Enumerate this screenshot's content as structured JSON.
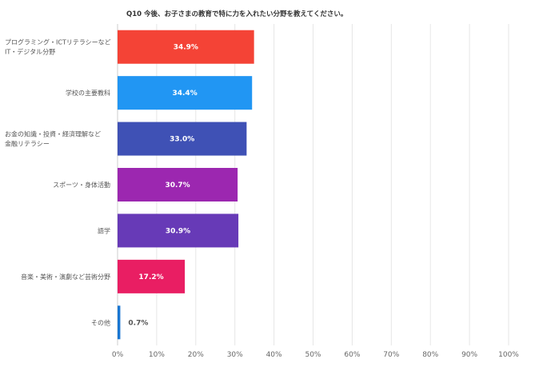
{
  "chart_data": {
    "type": "bar",
    "orientation": "horizontal",
    "title": "Q10 今後、お子さまの教育で特に力を入れたい分野を教えてください。",
    "categories": [
      [
        "プログラミング・ICTリテラシーなど",
        "IT・デジタル分野"
      ],
      [
        "学校の主要教科"
      ],
      [
        "お金の知識・投資・経済理解など",
        "金融リテラシー"
      ],
      [
        "スポーツ・身体活動"
      ],
      [
        "語学"
      ],
      [
        "音楽・美術・演劇など芸術分野"
      ],
      [
        "その他"
      ]
    ],
    "values": [
      34.9,
      34.4,
      33.0,
      30.7,
      30.9,
      17.2,
      0.7
    ],
    "value_labels": [
      "34.9%",
      "34.4%",
      "33.0%",
      "30.7%",
      "30.9%",
      "17.2%",
      "0.7%"
    ],
    "colors": [
      "#f44336",
      "#2196f3",
      "#3f51b5",
      "#9c27b0",
      "#673ab7",
      "#e91e63",
      "#1976d2"
    ],
    "xlim": [
      0,
      100
    ],
    "xticks": [
      "0%",
      "10%",
      "20%",
      "30%",
      "40%",
      "50%",
      "60%",
      "70%",
      "80%",
      "90%",
      "100%"
    ],
    "grid": true,
    "legend": "none"
  }
}
